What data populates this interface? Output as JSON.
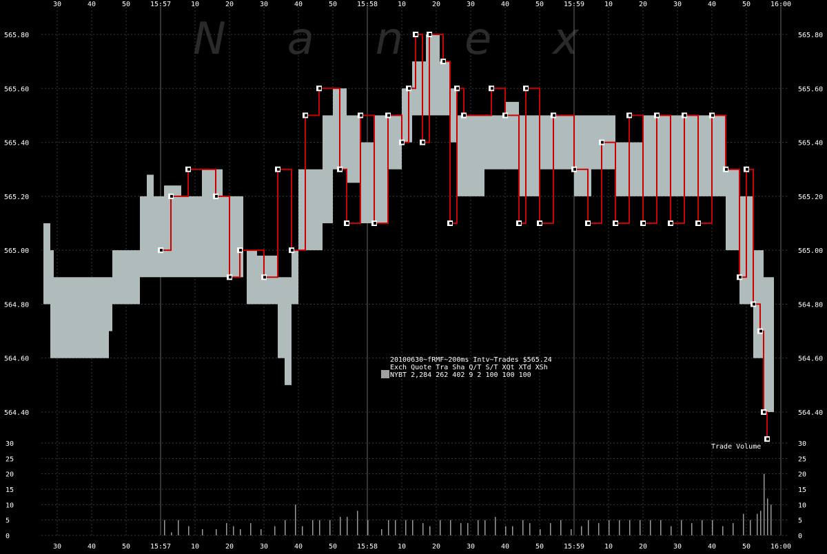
{
  "chart_data": {
    "type": "step-line+range-bars+volume-bars",
    "watermark": "N a n e x",
    "legend": {
      "line1": "20100630~fRMF~200ms Intv~Trades $565.24",
      "line2": "Exch Quote Tra Sha  Q/T   S/T  XQt XTd XSh",
      "line3": "NYBT 2,284 262 402     9     2 100 100 100",
      "swatch_color": "#a0a0a0"
    },
    "volume_label": "Trade Volume",
    "x_axis": {
      "start_seconds": 56846,
      "end_seconds": 57602,
      "tick_labels": [
        {
          "s": 56850,
          "label": "30"
        },
        {
          "s": 56860,
          "label": "40"
        },
        {
          "s": 56870,
          "label": "50"
        },
        {
          "s": 56880,
          "label": "15:57"
        },
        {
          "s": 56890,
          "label": "10"
        },
        {
          "s": 56900,
          "label": "20"
        },
        {
          "s": 56910,
          "label": "30"
        },
        {
          "s": 56920,
          "label": "40"
        },
        {
          "s": 56930,
          "label": "50"
        },
        {
          "s": 56940,
          "label": "15:58"
        },
        {
          "s": 56950,
          "label": "10"
        },
        {
          "s": 56960,
          "label": "20"
        },
        {
          "s": 56970,
          "label": "30"
        },
        {
          "s": 56980,
          "label": "40"
        },
        {
          "s": 56990,
          "label": "50"
        },
        {
          "s": 57000,
          "label": "15:59"
        },
        {
          "s": 57010,
          "label": "10"
        },
        {
          "s": 57020,
          "label": "20"
        },
        {
          "s": 57030,
          "label": "30"
        },
        {
          "s": 57040,
          "label": "40"
        },
        {
          "s": 57050,
          "label": "50"
        },
        {
          "s": 57060,
          "label": "16:00"
        }
      ]
    },
    "price_axis": {
      "range": [
        564.3,
        565.86
      ],
      "tick_labels": [
        "564.40",
        "564.60",
        "564.80",
        "565.00",
        "565.20",
        "565.40",
        "565.60",
        "565.80"
      ]
    },
    "volume_axis": {
      "range": [
        0,
        30
      ],
      "tick_labels": [
        "0",
        "5",
        "10",
        "15",
        "20",
        "25",
        "30"
      ]
    },
    "colors": {
      "background": "#000000",
      "range_fill": "#b0bcbc",
      "trade_line": "#cc0000",
      "marker": "#ffffff",
      "grid": "#555555",
      "text": "#ffffff",
      "volume_bar": "#9a9a9a"
    },
    "quote_range_bars": [
      {
        "s0": 56846,
        "s1": 56848,
        "lo": 564.8,
        "hi": 565.1
      },
      {
        "s0": 56848,
        "s1": 56849,
        "lo": 564.6,
        "hi": 565.0
      },
      {
        "s0": 56849,
        "s1": 56852,
        "lo": 564.6,
        "hi": 564.9
      },
      {
        "s0": 56852,
        "s1": 56865,
        "lo": 564.6,
        "hi": 564.9
      },
      {
        "s0": 56865,
        "s1": 56866,
        "lo": 564.7,
        "hi": 564.9
      },
      {
        "s0": 56866,
        "s1": 56874,
        "lo": 564.8,
        "hi": 565.0
      },
      {
        "s0": 56874,
        "s1": 56876,
        "lo": 564.9,
        "hi": 565.2
      },
      {
        "s0": 56876,
        "s1": 56878,
        "lo": 564.9,
        "hi": 565.28
      },
      {
        "s0": 56878,
        "s1": 56881,
        "lo": 564.9,
        "hi": 565.2
      },
      {
        "s0": 56881,
        "s1": 56886,
        "lo": 564.9,
        "hi": 565.24
      },
      {
        "s0": 56886,
        "s1": 56892,
        "lo": 564.9,
        "hi": 565.2
      },
      {
        "s0": 56892,
        "s1": 56898,
        "lo": 564.9,
        "hi": 565.3
      },
      {
        "s0": 56898,
        "s1": 56904,
        "lo": 564.9,
        "hi": 565.2
      },
      {
        "s0": 56905,
        "s1": 56908,
        "lo": 564.8,
        "hi": 565.0
      },
      {
        "s0": 56908,
        "s1": 56914,
        "lo": 564.8,
        "hi": 564.98
      },
      {
        "s0": 56914,
        "s1": 56916,
        "lo": 564.6,
        "hi": 564.9
      },
      {
        "s0": 56916,
        "s1": 56918,
        "lo": 564.5,
        "hi": 564.9
      },
      {
        "s0": 56918,
        "s1": 56920,
        "lo": 564.8,
        "hi": 565.0
      },
      {
        "s0": 56920,
        "s1": 56924,
        "lo": 565.0,
        "hi": 565.3
      },
      {
        "s0": 56924,
        "s1": 56927,
        "lo": 565.0,
        "hi": 565.3
      },
      {
        "s0": 56927,
        "s1": 56930,
        "lo": 565.1,
        "hi": 565.5
      },
      {
        "s0": 56930,
        "s1": 56934,
        "lo": 565.3,
        "hi": 565.6
      },
      {
        "s0": 56934,
        "s1": 56938,
        "lo": 565.25,
        "hi": 565.5
      },
      {
        "s0": 56938,
        "s1": 56942,
        "lo": 565.1,
        "hi": 565.4
      },
      {
        "s0": 56942,
        "s1": 56946,
        "lo": 565.1,
        "hi": 565.5
      },
      {
        "s0": 56946,
        "s1": 56950,
        "lo": 565.3,
        "hi": 565.5
      },
      {
        "s0": 56950,
        "s1": 56953,
        "lo": 565.4,
        "hi": 565.6
      },
      {
        "s0": 56953,
        "s1": 56957,
        "lo": 565.5,
        "hi": 565.7
      },
      {
        "s0": 56957,
        "s1": 56961,
        "lo": 565.5,
        "hi": 565.8
      },
      {
        "s0": 56961,
        "s1": 56964,
        "lo": 565.5,
        "hi": 565.7
      },
      {
        "s0": 56964,
        "s1": 56966,
        "lo": 565.4,
        "hi": 565.6
      },
      {
        "s0": 56966,
        "s1": 56974,
        "lo": 565.2,
        "hi": 565.5
      },
      {
        "s0": 56974,
        "s1": 56980,
        "lo": 565.3,
        "hi": 565.5
      },
      {
        "s0": 56980,
        "s1": 56984,
        "lo": 565.3,
        "hi": 565.55
      },
      {
        "s0": 56984,
        "s1": 56990,
        "lo": 565.2,
        "hi": 565.5
      },
      {
        "s0": 56990,
        "s1": 57000,
        "lo": 565.3,
        "hi": 565.5
      },
      {
        "s0": 57000,
        "s1": 57005,
        "lo": 565.2,
        "hi": 565.5
      },
      {
        "s0": 57005,
        "s1": 57012,
        "lo": 565.3,
        "hi": 565.5
      },
      {
        "s0": 57012,
        "s1": 57020,
        "lo": 565.2,
        "hi": 565.4
      },
      {
        "s0": 57020,
        "s1": 57028,
        "lo": 565.2,
        "hi": 565.5
      },
      {
        "s0": 57028,
        "s1": 57036,
        "lo": 565.2,
        "hi": 565.5
      },
      {
        "s0": 57036,
        "s1": 57044,
        "lo": 565.2,
        "hi": 565.5
      },
      {
        "s0": 57044,
        "s1": 57048,
        "lo": 565.0,
        "hi": 565.3
      },
      {
        "s0": 57048,
        "s1": 57052,
        "lo": 564.8,
        "hi": 565.2
      },
      {
        "s0": 57052,
        "s1": 57055,
        "lo": 564.6,
        "hi": 565.0
      },
      {
        "s0": 57055,
        "s1": 57058,
        "lo": 564.4,
        "hi": 564.9
      }
    ],
    "trade_price_steps": [
      [
        56880,
        565.0
      ],
      [
        56883,
        565.0
      ],
      [
        56883,
        565.2
      ],
      [
        56888,
        565.2
      ],
      [
        56888,
        565.3
      ],
      [
        56896,
        565.3
      ],
      [
        56896,
        565.2
      ],
      [
        56900,
        565.2
      ],
      [
        56900,
        564.9
      ],
      [
        56903,
        564.9
      ],
      [
        56903,
        565.0
      ],
      [
        56910,
        565.0
      ],
      [
        56910,
        564.9
      ],
      [
        56914,
        564.9
      ],
      [
        56914,
        565.3
      ],
      [
        56918,
        565.3
      ],
      [
        56918,
        565.0
      ],
      [
        56922,
        565.0
      ],
      [
        56922,
        565.5
      ],
      [
        56926,
        565.5
      ],
      [
        56926,
        565.6
      ],
      [
        56932,
        565.6
      ],
      [
        56932,
        565.3
      ],
      [
        56934,
        565.3
      ],
      [
        56934,
        565.1
      ],
      [
        56938,
        565.1
      ],
      [
        56938,
        565.5
      ],
      [
        56942,
        565.5
      ],
      [
        56942,
        565.1
      ],
      [
        56946,
        565.1
      ],
      [
        56946,
        565.5
      ],
      [
        56950,
        565.5
      ],
      [
        56950,
        565.4
      ],
      [
        56952,
        565.4
      ],
      [
        56952,
        565.6
      ],
      [
        56954,
        565.6
      ],
      [
        56954,
        565.8
      ],
      [
        56956,
        565.8
      ],
      [
        56956,
        565.4
      ],
      [
        56958,
        565.4
      ],
      [
        56958,
        565.8
      ],
      [
        56962,
        565.8
      ],
      [
        56962,
        565.7
      ],
      [
        56964,
        565.7
      ],
      [
        56964,
        565.1
      ],
      [
        56966,
        565.1
      ],
      [
        56966,
        565.6
      ],
      [
        56968,
        565.6
      ],
      [
        56968,
        565.5
      ],
      [
        56976,
        565.5
      ],
      [
        56976,
        565.6
      ],
      [
        56980,
        565.6
      ],
      [
        56980,
        565.5
      ],
      [
        56984,
        565.5
      ],
      [
        56984,
        565.1
      ],
      [
        56986,
        565.1
      ],
      [
        56986,
        565.6
      ],
      [
        56990,
        565.6
      ],
      [
        56990,
        565.1
      ],
      [
        56994,
        565.1
      ],
      [
        56994,
        565.5
      ],
      [
        57000,
        565.5
      ],
      [
        57000,
        565.3
      ],
      [
        57004,
        565.3
      ],
      [
        57004,
        565.1
      ],
      [
        57008,
        565.1
      ],
      [
        57008,
        565.4
      ],
      [
        57012,
        565.4
      ],
      [
        57012,
        565.1
      ],
      [
        57016,
        565.1
      ],
      [
        57016,
        565.5
      ],
      [
        57020,
        565.5
      ],
      [
        57020,
        565.1
      ],
      [
        57024,
        565.1
      ],
      [
        57024,
        565.5
      ],
      [
        57028,
        565.5
      ],
      [
        57028,
        565.1
      ],
      [
        57032,
        565.1
      ],
      [
        57032,
        565.5
      ],
      [
        57036,
        565.5
      ],
      [
        57036,
        565.1
      ],
      [
        57040,
        565.1
      ],
      [
        57040,
        565.5
      ],
      [
        57044,
        565.5
      ],
      [
        57044,
        565.3
      ],
      [
        57048,
        565.3
      ],
      [
        57048,
        564.9
      ],
      [
        57050,
        564.9
      ],
      [
        57050,
        565.3
      ],
      [
        57052,
        565.3
      ],
      [
        57052,
        564.8
      ],
      [
        57054,
        564.8
      ],
      [
        57054,
        564.7
      ],
      [
        57055,
        564.7
      ],
      [
        57055,
        564.4
      ],
      [
        57056,
        564.4
      ],
      [
        57056,
        564.3
      ]
    ],
    "volume_bars": [
      {
        "s": 56881,
        "v": 5
      },
      {
        "s": 56883,
        "v": 1
      },
      {
        "s": 56885,
        "v": 5
      },
      {
        "s": 56888,
        "v": 3
      },
      {
        "s": 56892,
        "v": 2
      },
      {
        "s": 56896,
        "v": 2
      },
      {
        "s": 56899,
        "v": 4
      },
      {
        "s": 56901,
        "v": 3
      },
      {
        "s": 56903,
        "v": 2
      },
      {
        "s": 56906,
        "v": 4
      },
      {
        "s": 56909,
        "v": 2
      },
      {
        "s": 56913,
        "v": 3
      },
      {
        "s": 56916,
        "v": 5
      },
      {
        "s": 56919,
        "v": 10
      },
      {
        "s": 56921,
        "v": 3
      },
      {
        "s": 56924,
        "v": 5
      },
      {
        "s": 56926,
        "v": 5
      },
      {
        "s": 56929,
        "v": 5
      },
      {
        "s": 56932,
        "v": 6
      },
      {
        "s": 56934,
        "v": 6
      },
      {
        "s": 56937,
        "v": 8
      },
      {
        "s": 56940,
        "v": 5
      },
      {
        "s": 56944,
        "v": 2
      },
      {
        "s": 56946,
        "v": 5
      },
      {
        "s": 56948,
        "v": 5
      },
      {
        "s": 56951,
        "v": 5
      },
      {
        "s": 56953,
        "v": 5
      },
      {
        "s": 56956,
        "v": 4
      },
      {
        "s": 56958,
        "v": 3
      },
      {
        "s": 56961,
        "v": 5
      },
      {
        "s": 56964,
        "v": 5
      },
      {
        "s": 56967,
        "v": 4
      },
      {
        "s": 56969,
        "v": 4
      },
      {
        "s": 56972,
        "v": 5
      },
      {
        "s": 56974,
        "v": 5
      },
      {
        "s": 56977,
        "v": 6
      },
      {
        "s": 56980,
        "v": 3
      },
      {
        "s": 56982,
        "v": 3
      },
      {
        "s": 56985,
        "v": 5
      },
      {
        "s": 56987,
        "v": 4
      },
      {
        "s": 56990,
        "v": 2
      },
      {
        "s": 56993,
        "v": 4
      },
      {
        "s": 56996,
        "v": 5
      },
      {
        "s": 56999,
        "v": 2
      },
      {
        "s": 57002,
        "v": 3
      },
      {
        "s": 57004,
        "v": 5
      },
      {
        "s": 57007,
        "v": 4
      },
      {
        "s": 57010,
        "v": 5
      },
      {
        "s": 57013,
        "v": 5
      },
      {
        "s": 57016,
        "v": 5
      },
      {
        "s": 57019,
        "v": 5
      },
      {
        "s": 57022,
        "v": 5
      },
      {
        "s": 57025,
        "v": 5
      },
      {
        "s": 57028,
        "v": 3
      },
      {
        "s": 57031,
        "v": 5
      },
      {
        "s": 57034,
        "v": 4
      },
      {
        "s": 57037,
        "v": 5
      },
      {
        "s": 57040,
        "v": 5
      },
      {
        "s": 57043,
        "v": 3
      },
      {
        "s": 57046,
        "v": 4
      },
      {
        "s": 57049,
        "v": 7
      },
      {
        "s": 57051,
        "v": 5
      },
      {
        "s": 57053,
        "v": 7
      },
      {
        "s": 57054,
        "v": 8
      },
      {
        "s": 57055,
        "v": 20
      },
      {
        "s": 57056,
        "v": 12
      },
      {
        "s": 57057,
        "v": 10
      }
    ]
  }
}
